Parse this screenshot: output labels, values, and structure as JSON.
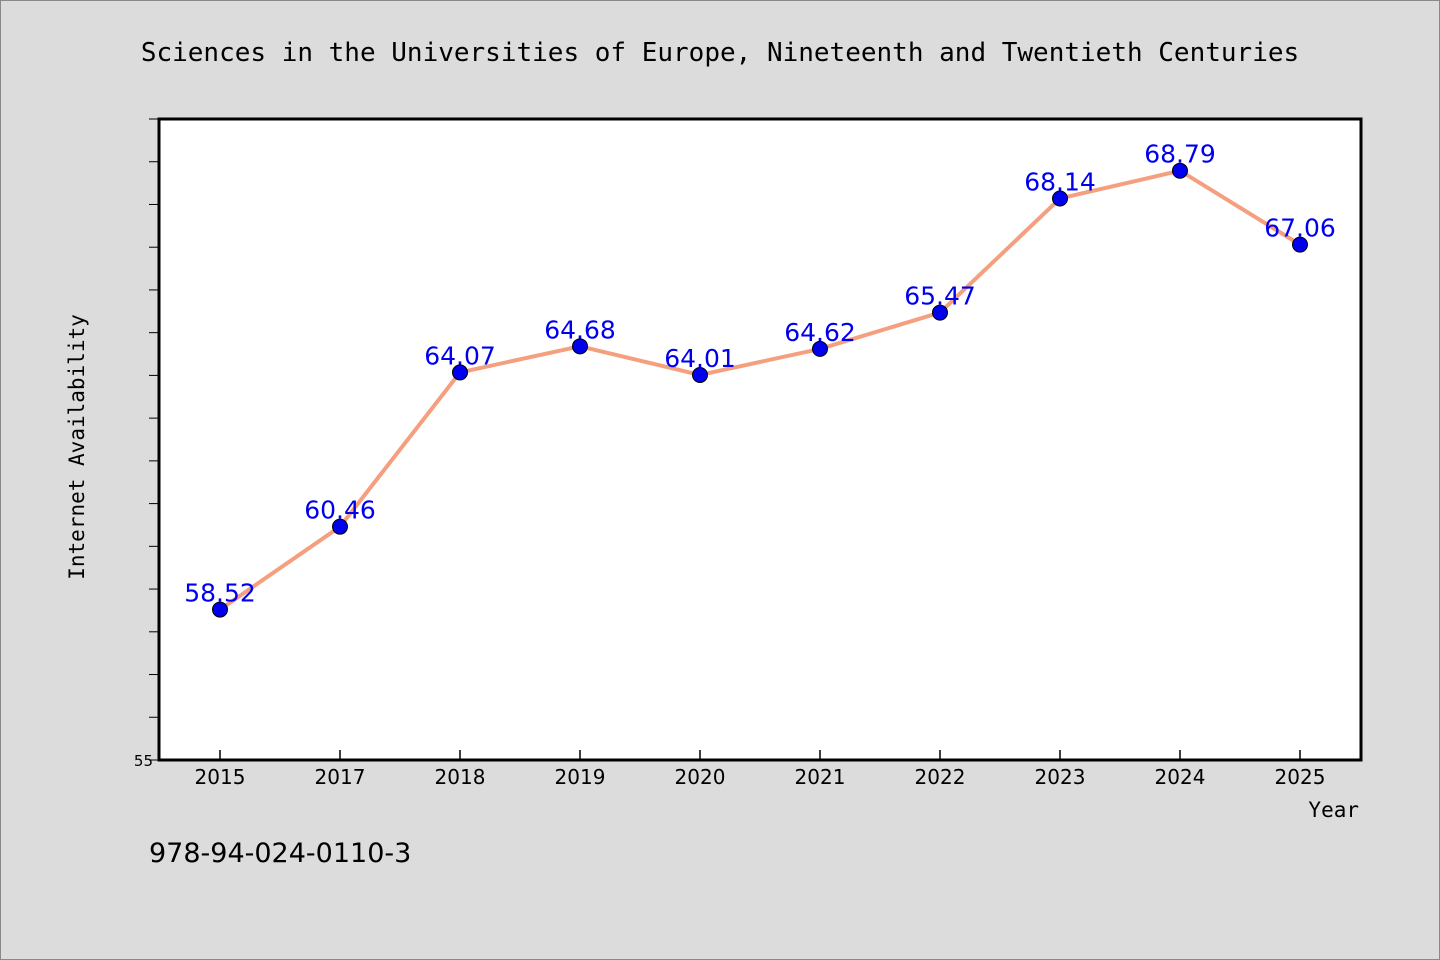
{
  "chart_data": {
    "type": "line",
    "title": "Sciences in the Universities of Europe, Nineteenth and Twentieth Centuries",
    "xlabel": "Year",
    "ylabel": "Internet Availability",
    "categories": [
      "2015",
      "2017",
      "2018",
      "2019",
      "2020",
      "2021",
      "2022",
      "2023",
      "2024",
      "2025"
    ],
    "series": [
      {
        "values": [
          58.52,
          60.46,
          64.07,
          64.68,
          64.01,
          64.62,
          65.47,
          68.14,
          68.79,
          67.06
        ],
        "data_labels": [
          "58.52",
          "60.46",
          "64.07",
          "64.68",
          "64.01",
          "64.62",
          "65.47",
          "68.14",
          "68.79",
          "67.06"
        ]
      }
    ],
    "ylim": [
      55,
      70
    ],
    "ytick_labels": [
      {
        "value": 55,
        "label": "55"
      }
    ],
    "y_minor_step": 1,
    "grid": false,
    "legend": "none",
    "colors": {
      "line": "#f4a07f",
      "marker": "#0000ee",
      "data_label": "#0000ee",
      "plot_background": "#ffffff",
      "figure_background": "#dcdcdc"
    }
  },
  "footnote": "978-94-024-0110-3"
}
